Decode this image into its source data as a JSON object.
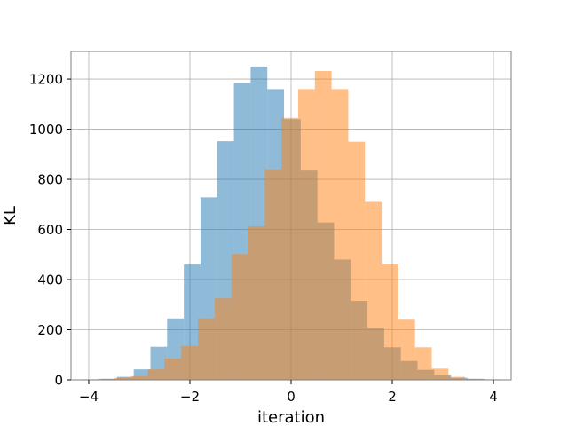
{
  "chart_data": {
    "type": "bar",
    "title": "",
    "xlabel": "iteration",
    "ylabel": "KL",
    "xlim": [
      -4.35,
      4.35
    ],
    "ylim": [
      0,
      1310
    ],
    "grid": true,
    "overlap": "alpha 0.5 overlaid histograms",
    "xticks": [
      -4,
      -2,
      0,
      2,
      4
    ],
    "xtick_labels": [
      "−4",
      "−2",
      "0",
      "2",
      "4"
    ],
    "yticks": [
      0,
      200,
      400,
      600,
      800,
      1000,
      1200
    ],
    "ytick_labels": [
      "0",
      "200",
      "400",
      "600",
      "800",
      "1000",
      "1200"
    ],
    "series": [
      {
        "color": "#1f77b4",
        "opacity": 0.5,
        "bins": [
          {
            "x0": -4.1,
            "x1": -3.77,
            "y": 2
          },
          {
            "x0": -3.77,
            "x1": -3.44,
            "y": 4
          },
          {
            "x0": -3.44,
            "x1": -3.11,
            "y": 12
          },
          {
            "x0": -3.11,
            "x1": -2.78,
            "y": 42
          },
          {
            "x0": -2.78,
            "x1": -2.45,
            "y": 132
          },
          {
            "x0": -2.45,
            "x1": -2.12,
            "y": 245
          },
          {
            "x0": -2.12,
            "x1": -1.79,
            "y": 460
          },
          {
            "x0": -1.79,
            "x1": -1.46,
            "y": 728
          },
          {
            "x0": -1.46,
            "x1": -1.13,
            "y": 952
          },
          {
            "x0": -1.13,
            "x1": -0.8,
            "y": 1185
          },
          {
            "x0": -0.8,
            "x1": -0.47,
            "y": 1250
          },
          {
            "x0": -0.47,
            "x1": -0.14,
            "y": 1160
          },
          {
            "x0": -0.14,
            "x1": 0.19,
            "y": 1040
          },
          {
            "x0": 0.19,
            "x1": 0.52,
            "y": 835
          },
          {
            "x0": 0.52,
            "x1": 0.85,
            "y": 628
          },
          {
            "x0": 0.85,
            "x1": 1.18,
            "y": 480
          },
          {
            "x0": 1.18,
            "x1": 1.51,
            "y": 315
          },
          {
            "x0": 1.51,
            "x1": 1.84,
            "y": 205
          },
          {
            "x0": 1.84,
            "x1": 2.17,
            "y": 130
          },
          {
            "x0": 2.17,
            "x1": 2.5,
            "y": 75
          },
          {
            "x0": 2.5,
            "x1": 2.83,
            "y": 40
          },
          {
            "x0": 2.83,
            "x1": 3.16,
            "y": 20
          },
          {
            "x0": 3.16,
            "x1": 3.49,
            "y": 8
          },
          {
            "x0": 3.49,
            "x1": 3.82,
            "y": 4
          },
          {
            "x0": 3.82,
            "x1": 4.15,
            "y": 2
          }
        ]
      },
      {
        "color": "#ff7f0e",
        "opacity": 0.5,
        "bins": [
          {
            "x0": -4.15,
            "x1": -3.82,
            "y": 2
          },
          {
            "x0": -3.82,
            "x1": -3.49,
            "y": 4
          },
          {
            "x0": -3.49,
            "x1": -3.16,
            "y": 8
          },
          {
            "x0": -3.16,
            "x1": -2.83,
            "y": 15
          },
          {
            "x0": -2.83,
            "x1": -2.5,
            "y": 42
          },
          {
            "x0": -2.5,
            "x1": -2.17,
            "y": 85
          },
          {
            "x0": -2.17,
            "x1": -1.84,
            "y": 135
          },
          {
            "x0": -1.84,
            "x1": -1.51,
            "y": 245
          },
          {
            "x0": -1.51,
            "x1": -1.18,
            "y": 325
          },
          {
            "x0": -1.18,
            "x1": -0.85,
            "y": 502
          },
          {
            "x0": -0.85,
            "x1": -0.52,
            "y": 612
          },
          {
            "x0": -0.52,
            "x1": -0.19,
            "y": 840
          },
          {
            "x0": -0.19,
            "x1": 0.14,
            "y": 1045
          },
          {
            "x0": 0.14,
            "x1": 0.47,
            "y": 1160
          },
          {
            "x0": 0.47,
            "x1": 0.8,
            "y": 1232
          },
          {
            "x0": 0.8,
            "x1": 1.13,
            "y": 1160
          },
          {
            "x0": 1.13,
            "x1": 1.46,
            "y": 950
          },
          {
            "x0": 1.46,
            "x1": 1.79,
            "y": 710
          },
          {
            "x0": 1.79,
            "x1": 2.12,
            "y": 460
          },
          {
            "x0": 2.12,
            "x1": 2.45,
            "y": 240
          },
          {
            "x0": 2.45,
            "x1": 2.78,
            "y": 130
          },
          {
            "x0": 2.78,
            "x1": 3.11,
            "y": 45
          },
          {
            "x0": 3.11,
            "x1": 3.44,
            "y": 12
          },
          {
            "x0": 3.44,
            "x1": 3.77,
            "y": 4
          },
          {
            "x0": 3.77,
            "x1": 4.1,
            "y": 2
          }
        ]
      }
    ]
  }
}
